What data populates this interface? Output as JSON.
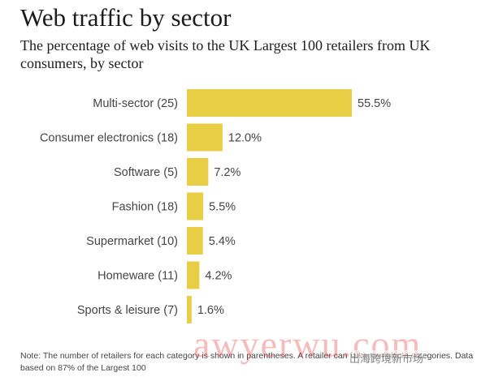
{
  "header": {
    "title": "Web traffic by sector",
    "subtitle": "The percentage of web visits to the UK Largest 100 retailers from UK consumers, by sector"
  },
  "chart_data": {
    "type": "bar",
    "orientation": "horizontal",
    "title": "Web traffic by sector",
    "xlabel": "",
    "ylabel": "",
    "xlim": [
      0,
      55.5
    ],
    "unit": "%",
    "categories": [
      "Multi-sector (25)",
      "Consumer electronics (18)",
      "Software (5)",
      "Fashion (18)",
      "Supermarket (10)",
      "Homeware (11)",
      "Sports & leisure (7)"
    ],
    "values": [
      55.5,
      12.0,
      7.2,
      5.5,
      5.4,
      4.2,
      1.6
    ],
    "value_labels": [
      "55.5%",
      "12.0%",
      "7.2%",
      "5.5%",
      "5.4%",
      "4.2%",
      "1.6%"
    ],
    "bar_color": "#e8ce45",
    "grid": false,
    "legend": "none"
  },
  "footer": {
    "note": "Note: The number of retailers for each category is shown in parentheses. A retailer can fall into multiple categories. Data based on 87% of the Largest 100"
  },
  "watermark": {
    "brand": "awyerwu.com",
    "channel": "出海跨境新市场"
  }
}
